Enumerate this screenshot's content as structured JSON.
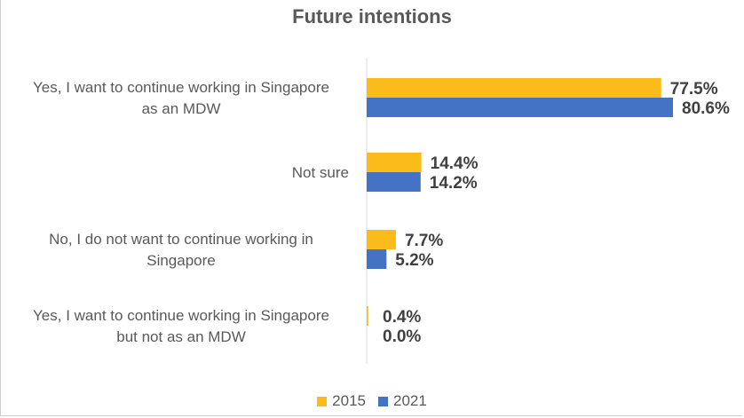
{
  "chart_data": {
    "type": "bar",
    "orientation": "horizontal",
    "title": "Future intentions",
    "categories": [
      [
        "Yes, I want to continue working in Singapore",
        "as an MDW"
      ],
      [
        "Not sure"
      ],
      [
        "No, I do not want to continue working in",
        "Singapore"
      ],
      [
        "Yes, I want to continue working in Singapore",
        "but not as an MDW"
      ]
    ],
    "series": [
      {
        "name": "2015",
        "color": "#FBBC1B",
        "values": [
          77.5,
          14.4,
          7.7,
          0.4
        ],
        "labels": [
          "77.5%",
          "14.4%",
          "7.7%",
          "0.4%"
        ]
      },
      {
        "name": "2021",
        "color": "#4472C4",
        "values": [
          80.6,
          14.2,
          5.2,
          0.0
        ],
        "labels": [
          "80.6%",
          "14.2%",
          "5.2%",
          "0.0%"
        ]
      }
    ],
    "xlim": [
      0,
      80.6
    ],
    "legend_position": "bottom",
    "grid": false
  }
}
